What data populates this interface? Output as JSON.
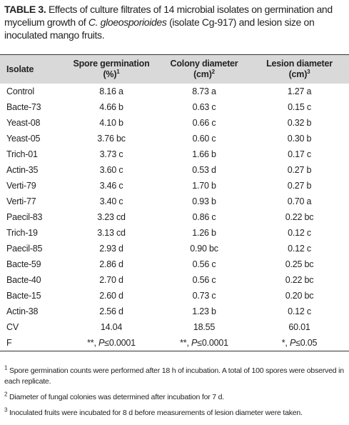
{
  "caption": {
    "label": "TABLE 3.",
    "text_before": "Effects of culture filtrates of 14 microbial isolates on germination and mycelium growth of",
    "italic": "C. gloeosporioides",
    "text_after": "(isolate Cg-917) and lesion size on inoculated mango fruits."
  },
  "table": {
    "headers": [
      {
        "lines": [
          "Isolate"
        ]
      },
      {
        "lines": [
          "Spore germination",
          "(%)"
        ],
        "note": "1"
      },
      {
        "lines": [
          "Colony diameter",
          "(cm)"
        ],
        "note": "2"
      },
      {
        "lines": [
          "Lesion diameter",
          "(cm)"
        ],
        "note": "3"
      }
    ],
    "rows": [
      [
        "Control",
        "8.16 a",
        "8.73 a",
        "1.27 a"
      ],
      [
        "Bacte-73",
        "4.66 b",
        "0.63 c",
        "0.15 c"
      ],
      [
        "Yeast-08",
        "4.10 b",
        "0.66 c",
        "0.32 b"
      ],
      [
        "Yeast-05",
        "3.76 bc",
        "0.60 c",
        "0.30 b"
      ],
      [
        "Trich-01",
        "3.73 c",
        "1.66 b",
        "0.17 c"
      ],
      [
        "Actin-35",
        "3.60 c",
        "0.53 d",
        "0.27 b"
      ],
      [
        "Verti-79",
        "3.46 c",
        "1.70 b",
        "0.27 b"
      ],
      [
        "Verti-77",
        "3.40 c",
        "0.93 b",
        "0.70 a"
      ],
      [
        "Paecil-83",
        "3.23 cd",
        "0.86 c",
        "0.22 bc"
      ],
      [
        "Trich-19",
        "3.13 cd",
        "1.26 b",
        "0.12 c"
      ],
      [
        "Paecil-85",
        "2.93 d",
        "0.90 bc",
        "0.12 c"
      ],
      [
        "Bacte-59",
        "2.86 d",
        "0.56 c",
        "0.25 bc"
      ],
      [
        "Bacte-40",
        "2.70 d",
        "0.56 c",
        "0.22 bc"
      ],
      [
        "Bacte-15",
        "2.60 d",
        "0.73 c",
        "0.20 bc"
      ],
      [
        "Actin-38",
        "2.56 d",
        "1.23 b",
        "0.12 c"
      ],
      [
        "CV",
        "14.04",
        "18.55",
        "60.01"
      ],
      [
        "F",
        [
          "**, ",
          "P",
          "≤0.0001"
        ],
        [
          "**, ",
          "P",
          "≤0.0001"
        ],
        [
          "*, ",
          "P",
          "≤0.05"
        ]
      ]
    ]
  },
  "footnotes": [
    {
      "mark": "1",
      "text": "Spore germination counts were performed after 18 h of incubation. A total of 100 spores were observed in each replicate."
    },
    {
      "mark": "2",
      "text": "Diameter of fungal colonies was determined after incubation for 7 d."
    },
    {
      "mark": "3",
      "text": "Inoculated fruits were incubated for 8 d before measurements of lesion diameter were taken."
    }
  ]
}
